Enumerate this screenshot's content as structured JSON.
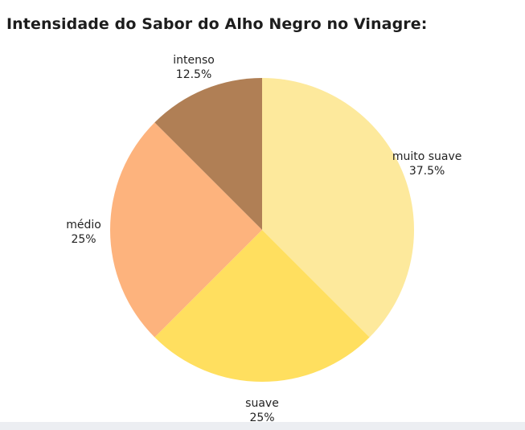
{
  "chart_data": {
    "type": "pie",
    "title": "Intensidade do Sabor do Alho Negro no Vinagre:",
    "slices": [
      {
        "label": "muito suave",
        "value": 37.5,
        "value_label": "37.5%",
        "color": "#fde99c"
      },
      {
        "label": "suave",
        "value": 25,
        "value_label": "25%",
        "color": "#ffdf5f"
      },
      {
        "label": "médio",
        "value": 25,
        "value_label": "25%",
        "color": "#fdb37d"
      },
      {
        "label": "intenso",
        "value": 12.5,
        "value_label": "12.5%",
        "color": "#b07f55"
      }
    ],
    "start_angle": "12 o'clock",
    "direction": "clockwise"
  }
}
